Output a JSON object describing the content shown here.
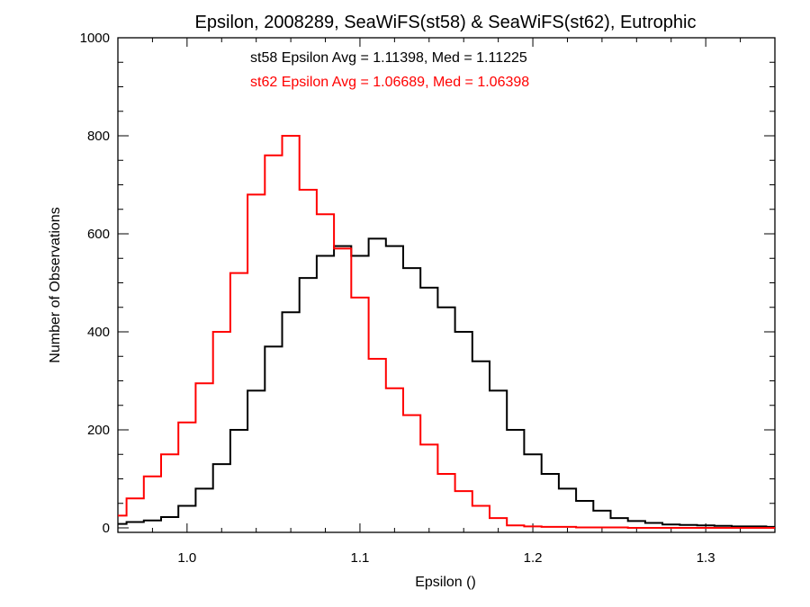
{
  "chart_data": {
    "type": "line",
    "step": true,
    "title": "Epsilon, 2008289, SeaWiFS(st58) & SeaWiFS(st62), Eutrophic",
    "xlabel": "Epsilon ()",
    "ylabel": "Number of Observations",
    "xlim": [
      0.96,
      1.34
    ],
    "ylim": [
      0,
      1000
    ],
    "xticks": [
      1.0,
      1.1,
      1.2,
      1.3
    ],
    "xtick_labels": [
      "1.0",
      "1.1",
      "1.2",
      "1.3"
    ],
    "yticks": [
      0,
      200,
      400,
      600,
      800,
      1000
    ],
    "ytick_labels": [
      "0",
      "200",
      "400",
      "600",
      "800",
      "1000"
    ],
    "grid": false,
    "annotations": [
      {
        "text": "st58 Epsilon Avg = 1.11398, Med = 1.11225",
        "color": "#000000"
      },
      {
        "text": "st62 Epsilon Avg = 1.06689, Med = 1.06398",
        "color": "#ff0000"
      }
    ],
    "series": [
      {
        "color": "#000000",
        "x": [
          0.96,
          0.97,
          0.98,
          0.99,
          1.0,
          1.01,
          1.02,
          1.03,
          1.04,
          1.05,
          1.06,
          1.07,
          1.08,
          1.09,
          1.1,
          1.11,
          1.12,
          1.13,
          1.14,
          1.15,
          1.16,
          1.17,
          1.18,
          1.19,
          1.2,
          1.21,
          1.22,
          1.23,
          1.24,
          1.25,
          1.26,
          1.27,
          1.28,
          1.29,
          1.3,
          1.31,
          1.32,
          1.33,
          1.34
        ],
        "y": [
          8,
          12,
          15,
          22,
          45,
          80,
          130,
          200,
          280,
          370,
          440,
          510,
          555,
          575,
          555,
          590,
          575,
          530,
          490,
          450,
          400,
          340,
          280,
          200,
          150,
          110,
          80,
          55,
          35,
          20,
          14,
          10,
          7,
          6,
          5,
          4,
          3,
          3,
          2
        ]
      },
      {
        "color": "#ff0000",
        "x": [
          0.96,
          0.97,
          0.98,
          0.99,
          1.0,
          1.01,
          1.02,
          1.03,
          1.04,
          1.05,
          1.06,
          1.07,
          1.08,
          1.09,
          1.1,
          1.11,
          1.12,
          1.13,
          1.14,
          1.15,
          1.16,
          1.17,
          1.18,
          1.19,
          1.2,
          1.21,
          1.22,
          1.23,
          1.24,
          1.25,
          1.26,
          1.27,
          1.28,
          1.29,
          1.3,
          1.31,
          1.32,
          1.33,
          1.34
        ],
        "y": [
          25,
          60,
          105,
          150,
          215,
          295,
          400,
          520,
          680,
          760,
          800,
          690,
          640,
          570,
          470,
          345,
          285,
          230,
          170,
          110,
          75,
          45,
          20,
          5,
          3,
          2,
          2,
          1,
          1,
          1,
          0,
          0,
          0,
          0,
          0,
          0,
          0,
          0,
          0
        ]
      }
    ]
  }
}
